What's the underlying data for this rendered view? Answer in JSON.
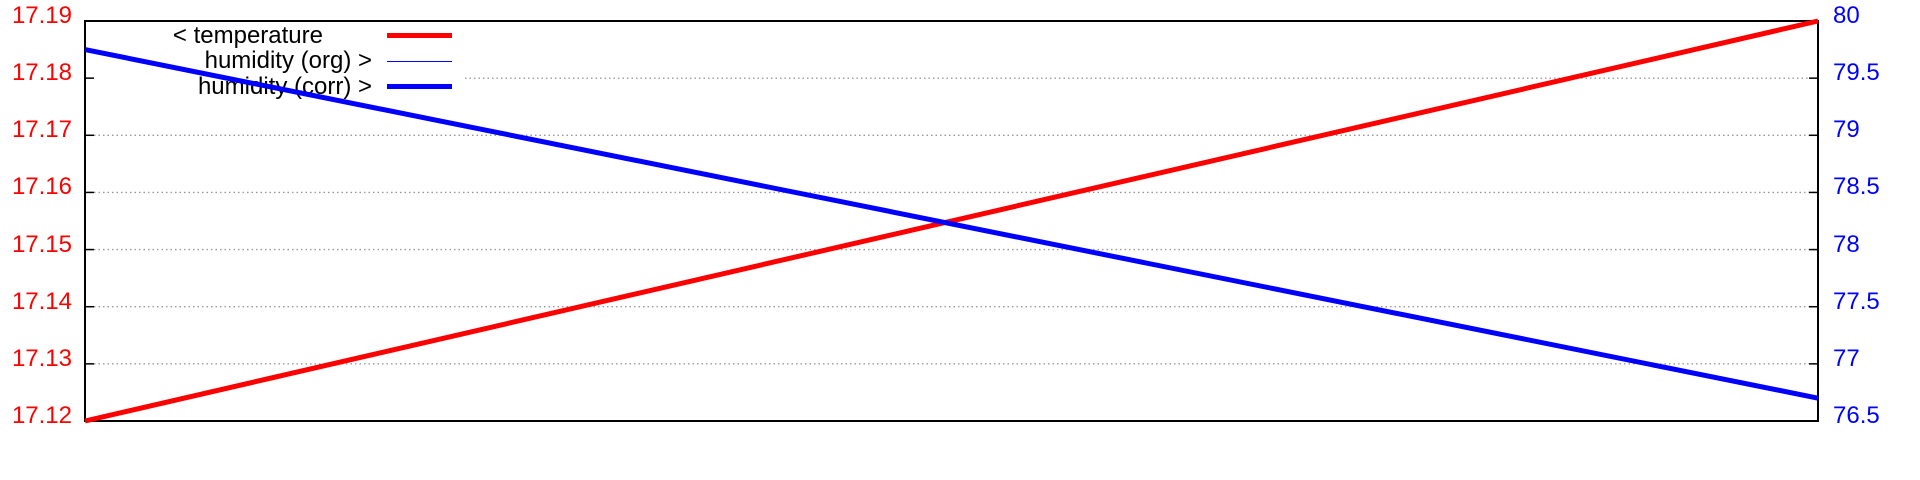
{
  "chart_data": {
    "type": "line",
    "title": "",
    "background": "#ffffff",
    "grid": {
      "show": true,
      "style": "dotted",
      "color": "#999999"
    },
    "x_axis": {
      "tick_labels": []
    },
    "y_left": {
      "axis_color": "#ff0000",
      "range": [
        17.12,
        17.19
      ],
      "tick_labels": [
        "17.19",
        "17.18",
        "17.17",
        "17.16",
        "17.15",
        "17.14",
        "17.13",
        "17.12"
      ]
    },
    "y_right": {
      "axis_color": "#0000ff",
      "range": [
        76.5,
        80
      ],
      "tick_labels": [
        "80",
        "79.5",
        "79",
        "78.5",
        "78",
        "77.5",
        "77",
        "76.5"
      ]
    },
    "series": [
      {
        "name": "temperature",
        "axis": "left",
        "color": "#ff0000",
        "line_width": 5,
        "x": [
          0,
          1
        ],
        "y": [
          17.12,
          17.19
        ]
      },
      {
        "name": "humidity (org)",
        "axis": "right",
        "color": "#0000ff",
        "line_width": 1.4,
        "x": [
          0,
          1
        ],
        "y": [
          79.75,
          76.7
        ]
      },
      {
        "name": "humidity (corr)",
        "axis": "right",
        "color": "#0000ff",
        "line_width": 5,
        "x": [
          0,
          1
        ],
        "y": [
          79.75,
          76.7
        ]
      }
    ],
    "legend": {
      "position": "top-left",
      "entries": [
        {
          "label": "< temperature",
          "color": "#ff0000",
          "line_width": 5
        },
        {
          "label": "humidity (org) >",
          "color": "#0000ff",
          "line_width": 1.4
        },
        {
          "label": "humidity (corr) >",
          "color": "#0000ff",
          "line_width": 5
        }
      ]
    }
  }
}
